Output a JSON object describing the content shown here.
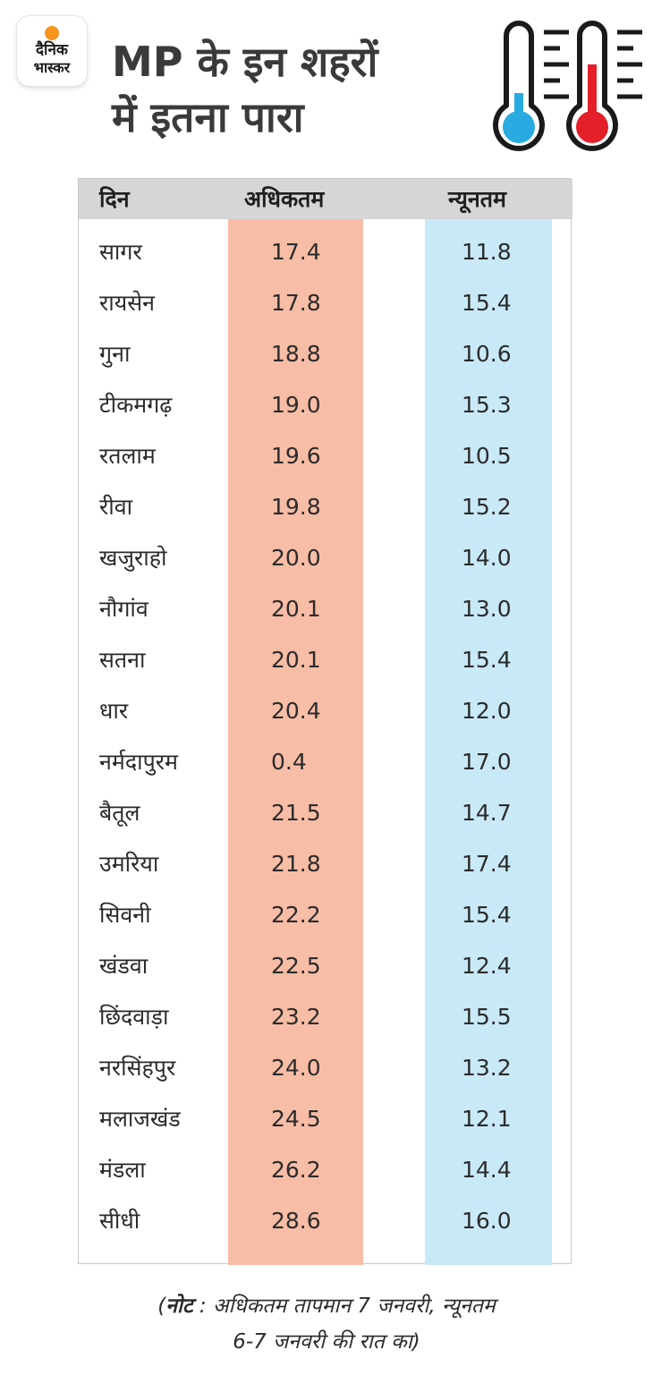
{
  "logo": {
    "line1": "दैनिक",
    "line2": "भास्कर"
  },
  "headline": {
    "line1": "MP के इन शहरों",
    "line2": "में इतना पारा"
  },
  "icons": {
    "thermometer_cold": "thermometer-cold-icon",
    "thermometer_hot": "thermometer-hot-icon"
  },
  "colors": {
    "max_column": "#f8bda6",
    "min_column": "#c9e9f8",
    "header_bar": "#d6d6d6",
    "thermo_blue": "#29abe2",
    "thermo_red": "#e3202a",
    "logo_sun": "#f7941d"
  },
  "table": {
    "headers": {
      "city": "दिन",
      "max": "अधिकतम",
      "min": "न्यूनतम"
    },
    "rows": [
      {
        "city": "सागर",
        "max": "17.4",
        "min": "11.8"
      },
      {
        "city": "रायसेन",
        "max": "17.8",
        "min": "15.4"
      },
      {
        "city": "गुना",
        "max": "18.8",
        "min": "10.6"
      },
      {
        "city": "टीकमगढ़",
        "max": "19.0",
        "min": "15.3"
      },
      {
        "city": "रतलाम",
        "max": "19.6",
        "min": "10.5"
      },
      {
        "city": "रीवा",
        "max": "19.8",
        "min": "15.2"
      },
      {
        "city": "खजुराहो",
        "max": "20.0",
        "min": "14.0"
      },
      {
        "city": "नौगांव",
        "max": "20.1",
        "min": "13.0"
      },
      {
        "city": "सतना",
        "max": "20.1",
        "min": "15.4"
      },
      {
        "city": "धार",
        "max": "20.4",
        "min": "12.0"
      },
      {
        "city": "नर्मदापुरम",
        "max": "0.4",
        "min": "17.0"
      },
      {
        "city": "बैतूल",
        "max": "21.5",
        "min": "14.7"
      },
      {
        "city": "उमरिया",
        "max": "21.8",
        "min": "17.4"
      },
      {
        "city": "सिवनी",
        "max": "22.2",
        "min": "15.4"
      },
      {
        "city": "खंडवा",
        "max": "22.5",
        "min": "12.4"
      },
      {
        "city": "छिंदवाड़ा",
        "max": "23.2",
        "min": "15.5"
      },
      {
        "city": "नरसिंहपुर",
        "max": "24.0",
        "min": "13.2"
      },
      {
        "city": "मलाजखंड",
        "max": "24.5",
        "min": "12.1"
      },
      {
        "city": "मंडला",
        "max": "26.2",
        "min": "14.4"
      },
      {
        "city": "सीधी",
        "max": "28.6",
        "min": "16.0"
      }
    ]
  },
  "note": {
    "open": "(",
    "label": "नोट",
    "line1_rest": " : अधिकतम तापमान 7 जनवरी, न्यूनतम",
    "line2": "6-7 जनवरी की रात का)"
  }
}
